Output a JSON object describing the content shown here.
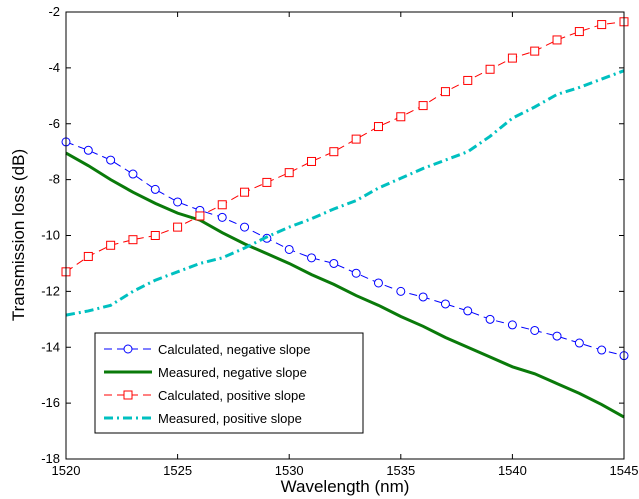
{
  "chart_data": {
    "type": "line",
    "xlabel": "Wavelength (nm)",
    "ylabel": "Transmission loss (dB)",
    "xlim": [
      1520,
      1545
    ],
    "ylim": [
      -18,
      -2
    ],
    "xticks": [
      1520,
      1525,
      1530,
      1535,
      1540,
      1545
    ],
    "yticks": [
      -18,
      -16,
      -14,
      -12,
      -10,
      -8,
      -6,
      -4,
      -2
    ],
    "grid": false,
    "legend_position": "bottom-left",
    "series": [
      {
        "name": "Calculated, negative slope",
        "color": "#0000ff",
        "line_style": "dashed",
        "marker": "circle",
        "x": [
          1520,
          1521,
          1522,
          1523,
          1524,
          1525,
          1526,
          1527,
          1528,
          1529,
          1530,
          1531,
          1532,
          1533,
          1534,
          1535,
          1536,
          1537,
          1538,
          1539,
          1540,
          1541,
          1542,
          1543,
          1544,
          1545
        ],
        "y": [
          -6.65,
          -6.95,
          -7.3,
          -7.8,
          -8.35,
          -8.8,
          -9.1,
          -9.35,
          -9.7,
          -10.1,
          -10.5,
          -10.8,
          -11.0,
          -11.35,
          -11.7,
          -12.0,
          -12.2,
          -12.45,
          -12.7,
          -13.0,
          -13.2,
          -13.4,
          -13.6,
          -13.85,
          -14.1,
          -14.3
        ]
      },
      {
        "name": "Measured, negative slope",
        "color": "#0a7a0a",
        "line_style": "solid",
        "marker": "none",
        "x": [
          1520,
          1521,
          1522,
          1523,
          1524,
          1525,
          1526,
          1527,
          1528,
          1529,
          1530,
          1531,
          1532,
          1533,
          1534,
          1535,
          1536,
          1537,
          1538,
          1539,
          1540,
          1541,
          1542,
          1543,
          1544,
          1545
        ],
        "y": [
          -7.05,
          -7.5,
          -8.0,
          -8.45,
          -8.85,
          -9.2,
          -9.45,
          -9.9,
          -10.3,
          -10.65,
          -11.0,
          -11.4,
          -11.75,
          -12.15,
          -12.5,
          -12.9,
          -13.25,
          -13.65,
          -14.0,
          -14.35,
          -14.7,
          -14.95,
          -15.3,
          -15.65,
          -16.05,
          -16.5
        ]
      },
      {
        "name": "Calculated, positive slope",
        "color": "#ff0000",
        "line_style": "dashed",
        "marker": "square",
        "x": [
          1520,
          1521,
          1522,
          1523,
          1524,
          1525,
          1526,
          1527,
          1528,
          1529,
          1530,
          1531,
          1532,
          1533,
          1534,
          1535,
          1536,
          1537,
          1538,
          1539,
          1540,
          1541,
          1542,
          1543,
          1544,
          1545
        ],
        "y": [
          -11.3,
          -10.75,
          -10.35,
          -10.15,
          -10.0,
          -9.7,
          -9.3,
          -8.9,
          -8.45,
          -8.1,
          -7.75,
          -7.35,
          -7.0,
          -6.55,
          -6.1,
          -5.75,
          -5.35,
          -4.85,
          -4.45,
          -4.05,
          -3.65,
          -3.4,
          -3.0,
          -2.7,
          -2.45,
          -2.35
        ]
      },
      {
        "name": "Measured, positive slope",
        "color": "#00c0c0",
        "line_style": "dash-dot",
        "marker": "none",
        "x": [
          1520,
          1521,
          1522,
          1523,
          1524,
          1525,
          1526,
          1527,
          1528,
          1529,
          1530,
          1531,
          1532,
          1533,
          1534,
          1535,
          1536,
          1537,
          1538,
          1539,
          1540,
          1541,
          1542,
          1543,
          1544,
          1545
        ],
        "y": [
          -12.85,
          -12.7,
          -12.5,
          -12.0,
          -11.6,
          -11.3,
          -11.0,
          -10.8,
          -10.45,
          -10.05,
          -9.7,
          -9.4,
          -9.05,
          -8.75,
          -8.3,
          -7.95,
          -7.6,
          -7.3,
          -7.0,
          -6.45,
          -5.8,
          -5.4,
          -4.95,
          -4.7,
          -4.4,
          -4.1
        ]
      }
    ]
  }
}
